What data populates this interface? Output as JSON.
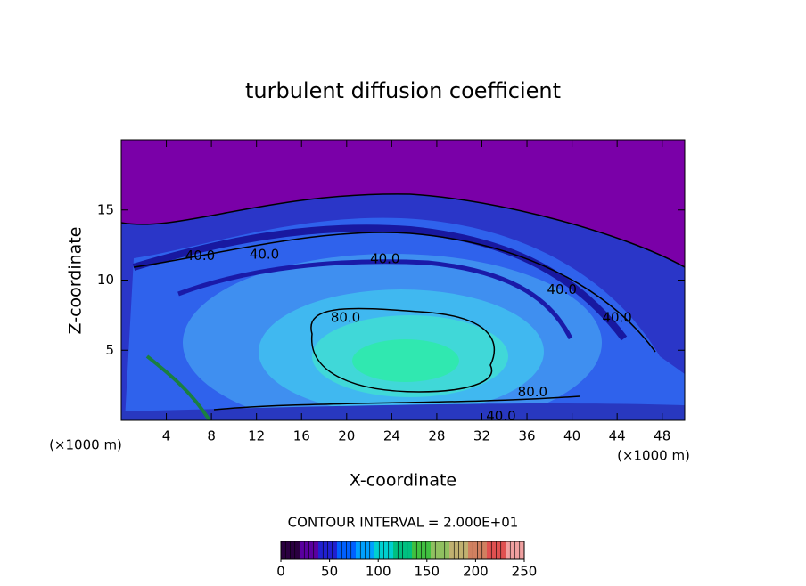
{
  "chart_data": {
    "type": "contour",
    "title": "turbulent diffusion coefficient",
    "x_label": "X-coordinate",
    "y_label": "Z-coordinate",
    "unit_labels": [
      "(×1000 m)",
      "(×1000 m)"
    ],
    "xlim": [
      0,
      50
    ],
    "xticks": [
      4,
      8,
      12,
      16,
      20,
      24,
      28,
      32,
      36,
      40,
      44,
      48
    ],
    "ylim": [
      0,
      20
    ],
    "yticks": [
      5,
      10,
      15
    ],
    "contour_interval_text": "CONTOUR INTERVAL = 2.000E+01",
    "contour_labels": [
      {
        "x": 7.0,
        "y": 11.7,
        "value": 40,
        "label": "40.0"
      },
      {
        "x": 12.7,
        "y": 11.8,
        "value": 40,
        "label": "40.0"
      },
      {
        "x": 23.4,
        "y": 11.5,
        "value": 40,
        "label": "40.0"
      },
      {
        "x": 39.1,
        "y": 9.3,
        "value": 40,
        "label": "40.0"
      },
      {
        "x": 44.0,
        "y": 7.3,
        "value": 40,
        "label": "40.0"
      },
      {
        "x": 19.9,
        "y": 7.3,
        "value": 80,
        "label": "80.0"
      },
      {
        "x": 36.5,
        "y": 2.0,
        "value": 80,
        "label": "80.0"
      },
      {
        "x": 33.7,
        "y": 0.3,
        "value": 40,
        "label": "40.0"
      }
    ],
    "colorbar": {
      "lim": [
        0,
        250
      ],
      "ticks": [
        0,
        50,
        100,
        150,
        200,
        250
      ],
      "colors": [
        "#2a0040",
        "#5a00a0",
        "#2020d0",
        "#0060ff",
        "#00a0ff",
        "#00d0d0",
        "#00c080",
        "#40c040",
        "#90c060",
        "#c0b070",
        "#d08060",
        "#e05050",
        "#f0a0a0"
      ]
    }
  }
}
